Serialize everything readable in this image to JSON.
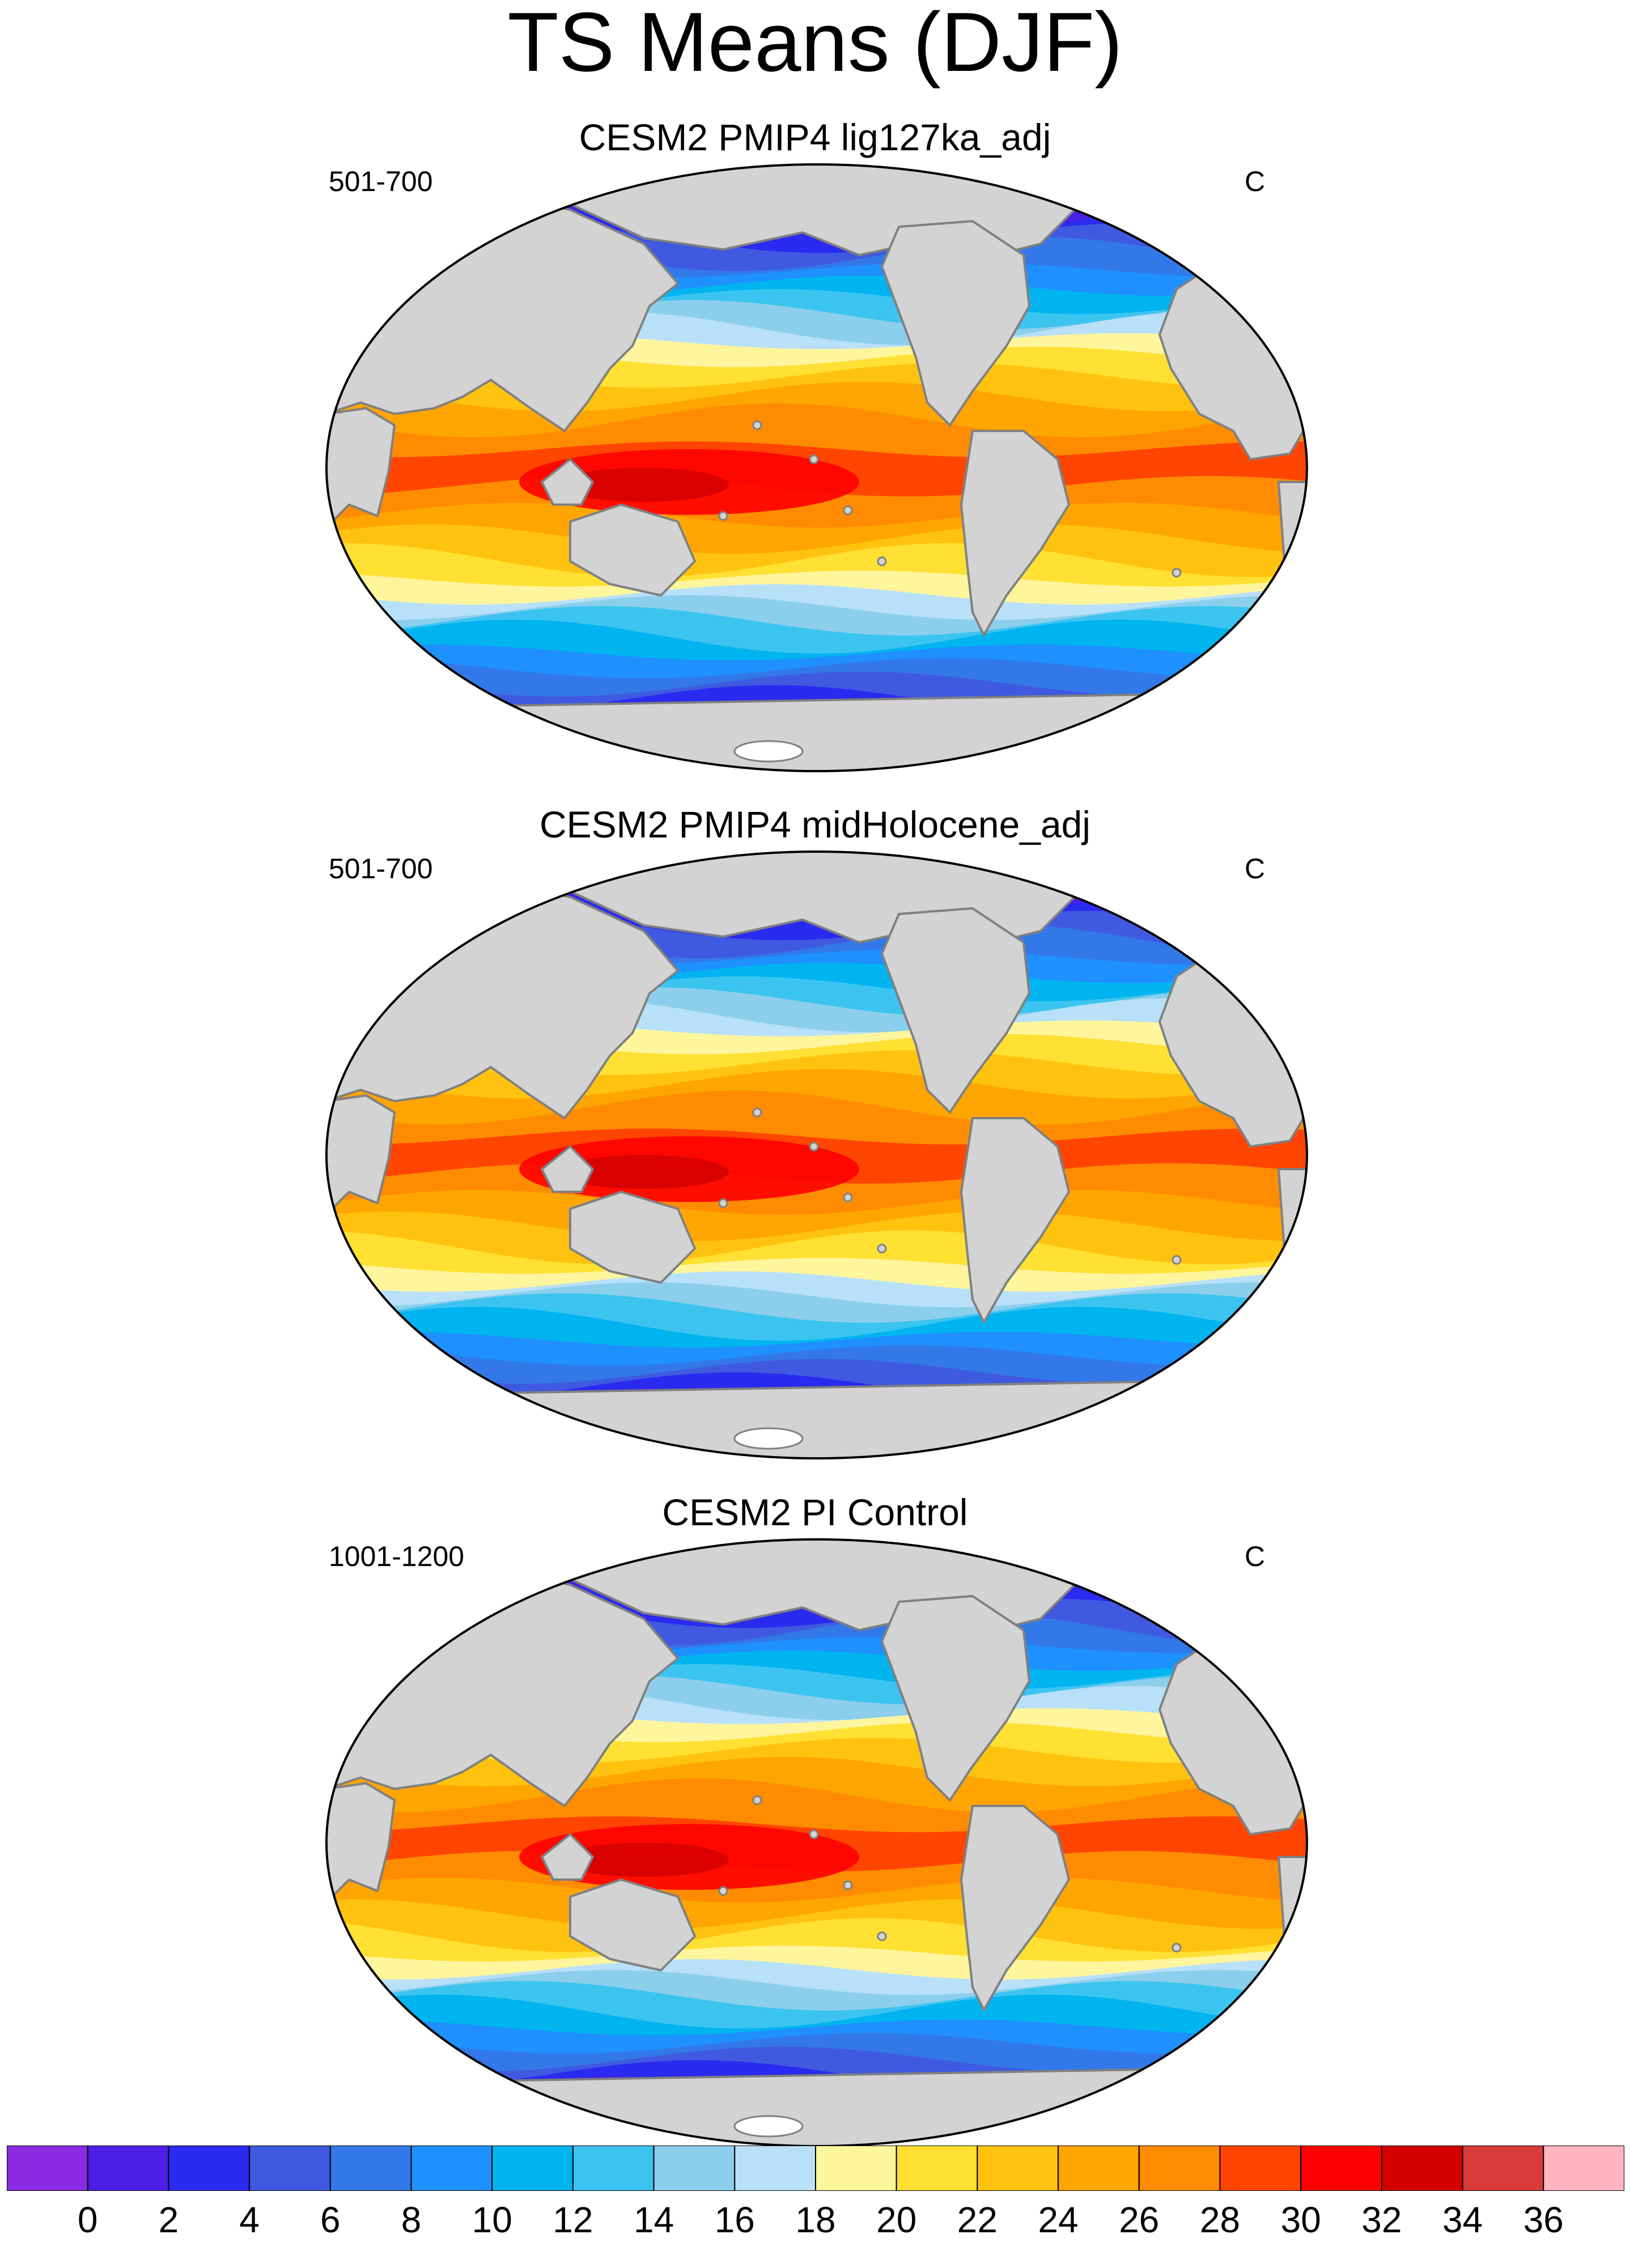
{
  "figure": {
    "title": "TS Means (DJF)"
  },
  "panels": [
    {
      "title": "CESM2 PMIP4 lig127ka_adj",
      "period": "501-700",
      "units": "C"
    },
    {
      "title": "CESM2 PMIP4 midHolocene_adj",
      "period": "501-700",
      "units": "C"
    },
    {
      "title": "CESM2 PI Control",
      "period": "1001-1200",
      "units": "C"
    }
  ],
  "colorbar": {
    "labels": [
      "0",
      "2",
      "4",
      "6",
      "8",
      "10",
      "12",
      "14",
      "16",
      "18",
      "20",
      "22",
      "24",
      "26",
      "28",
      "30",
      "32",
      "34",
      "36"
    ],
    "colors": [
      "#8a2be2",
      "#4b1fe6",
      "#2a2af0",
      "#3f5ae0",
      "#3378e8",
      "#1e90ff",
      "#00b4f0",
      "#3cc4f0",
      "#8ccfec",
      "#b8e0f8",
      "#fff59d",
      "#ffe033",
      "#ffc20e",
      "#ffa500",
      "#ff8c00",
      "#ff4500",
      "#ff0000",
      "#d40000",
      "#d93a3a",
      "#ffb6c1"
    ]
  },
  "colors": {
    "land": "#d3d3d3",
    "coast": "#808080"
  }
}
